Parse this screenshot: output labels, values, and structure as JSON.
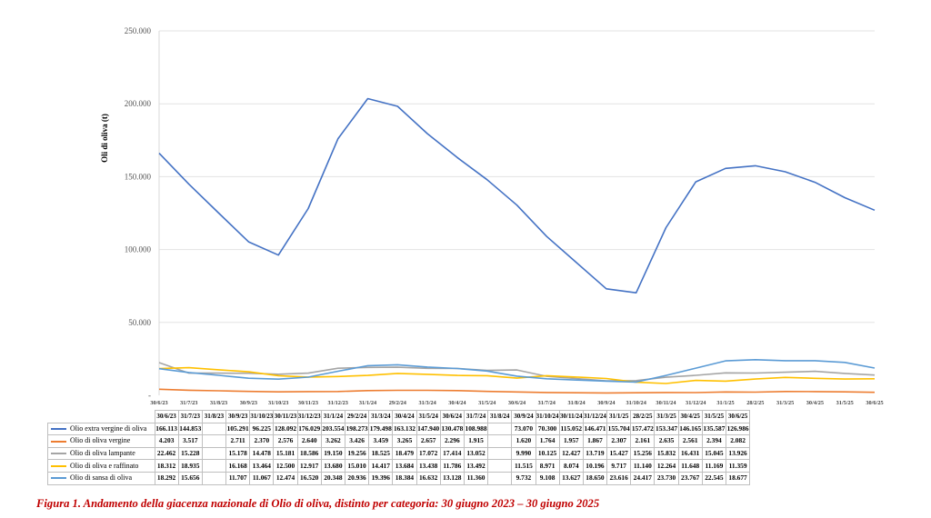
{
  "chart_data": {
    "type": "line",
    "ylabel": "Oli di oliva (t)",
    "ylim": [
      0,
      250000
    ],
    "yticks": [
      "-",
      "50.000",
      "100.000",
      "150.000",
      "200.000",
      "250.000"
    ],
    "ytick_values": [
      0,
      50000,
      100000,
      150000,
      200000,
      250000
    ],
    "grid": true,
    "legend": "table-below",
    "x": [
      "30/6/23",
      "31/7/23",
      "31/8/23",
      "30/9/23",
      "31/10/23",
      "30/11/23",
      "31/12/23",
      "31/1/24",
      "29/2/24",
      "31/3/24",
      "30/4/24",
      "31/5/24",
      "30/6/24",
      "31/7/24",
      "31/8/24",
      "30/9/24",
      "31/10/24",
      "30/11/24",
      "31/12/24",
      "31/1/25",
      "28/2/25",
      "31/3/25",
      "30/4/25",
      "31/5/25",
      "30/6/25"
    ],
    "series": [
      {
        "name": "Olio extra vergine di oliva",
        "color": "#4472c4",
        "values": [
          166113,
          144853,
          125000,
          105291,
          96225,
          128092,
          176029,
          203554,
          198273,
          179498,
          163132,
          147940,
          130478,
          108988,
          91000,
          73070,
          70300,
          115052,
          146471,
          155704,
          157472,
          153347,
          146165,
          135587,
          126986
        ],
        "labels": [
          "166.113",
          "144.853",
          "",
          "105.291",
          "96.225",
          "128.092",
          "176.029",
          "203.554",
          "198.273",
          "179.498",
          "163.132",
          "147.940",
          "130.478",
          "108.988",
          "",
          "73.070",
          "70.300",
          "115.052",
          "146.471",
          "155.704",
          "157.472",
          "153.347",
          "146.165",
          "135.587",
          "126.986"
        ]
      },
      {
        "name": "Olio di oliva vergine",
        "color": "#ed7d31",
        "values": [
          4203,
          3517,
          3100,
          2711,
          2370,
          2576,
          2640,
          3262,
          3426,
          3459,
          3265,
          2657,
          2296,
          1915,
          1750,
          1620,
          1764,
          1957,
          1867,
          2307,
          2161,
          2635,
          2561,
          2394,
          2082
        ],
        "labels": [
          "4.203",
          "3.517",
          "",
          "2.711",
          "2.370",
          "2.576",
          "2.640",
          "3.262",
          "3.426",
          "3.459",
          "3.265",
          "2.657",
          "2.296",
          "1.915",
          "",
          "1.620",
          "1.764",
          "1.957",
          "1.867",
          "2.307",
          "2.161",
          "2.635",
          "2.561",
          "2.394",
          "2.082"
        ]
      },
      {
        "name": "Olio di oliva lampante",
        "color": "#a5a5a5",
        "values": [
          22462,
          15228,
          15200,
          15178,
          14478,
          15181,
          18586,
          19150,
          19256,
          18525,
          18479,
          17072,
          17414,
          13052,
          11500,
          9990,
          10125,
          12427,
          13719,
          15427,
          15256,
          15832,
          16431,
          15045,
          13926
        ],
        "labels": [
          "22.462",
          "15.228",
          "",
          "15.178",
          "14.478",
          "15.181",
          "18.586",
          "19.150",
          "19.256",
          "18.525",
          "18.479",
          "17.072",
          "17.414",
          "13.052",
          "",
          "9.990",
          "10.125",
          "12.427",
          "13.719",
          "15.427",
          "15.256",
          "15.832",
          "16.431",
          "15.045",
          "13.926"
        ]
      },
      {
        "name": "Olio di oliva e raffinato",
        "color": "#ffc000",
        "values": [
          18312,
          18935,
          17500,
          16168,
          13464,
          12500,
          12917,
          13680,
          15010,
          14417,
          13684,
          13438,
          11786,
          13492,
          12500,
          11515,
          8971,
          8074,
          10196,
          9717,
          11140,
          12264,
          11648,
          11169,
          11359
        ],
        "labels": [
          "18.312",
          "18.935",
          "",
          "16.168",
          "13.464",
          "12.500",
          "12.917",
          "13.680",
          "15.010",
          "14.417",
          "13.684",
          "13.438",
          "11.786",
          "13.492",
          "",
          "11.515",
          "8.971",
          "8.074",
          "10.196",
          "9.717",
          "11.140",
          "12.264",
          "11.648",
          "11.169",
          "11.359"
        ]
      },
      {
        "name": "Olio di sansa di oliva",
        "color": "#5b9bd5",
        "values": [
          18292,
          15656,
          13700,
          11707,
          11067,
          12474,
          16520,
          20348,
          20936,
          19396,
          18384,
          16632,
          13128,
          11360,
          10500,
          9732,
          9108,
          13627,
          18650,
          23616,
          24417,
          23730,
          23767,
          22545,
          18677
        ],
        "labels": [
          "18.292",
          "15.656",
          "",
          "11.707",
          "11.067",
          "12.474",
          "16.520",
          "20.348",
          "20.936",
          "19.396",
          "18.384",
          "16.632",
          "13.128",
          "11.360",
          "",
          "9.732",
          "9.108",
          "13.627",
          "18.650",
          "23.616",
          "24.417",
          "23.730",
          "23.767",
          "22.545",
          "18.677"
        ]
      }
    ]
  },
  "caption": "Figura 1. Andamento della giacenza nazionale di Olio di oliva, distinto per categoria: 30 giugno 2023 – 30 giugno 2025"
}
